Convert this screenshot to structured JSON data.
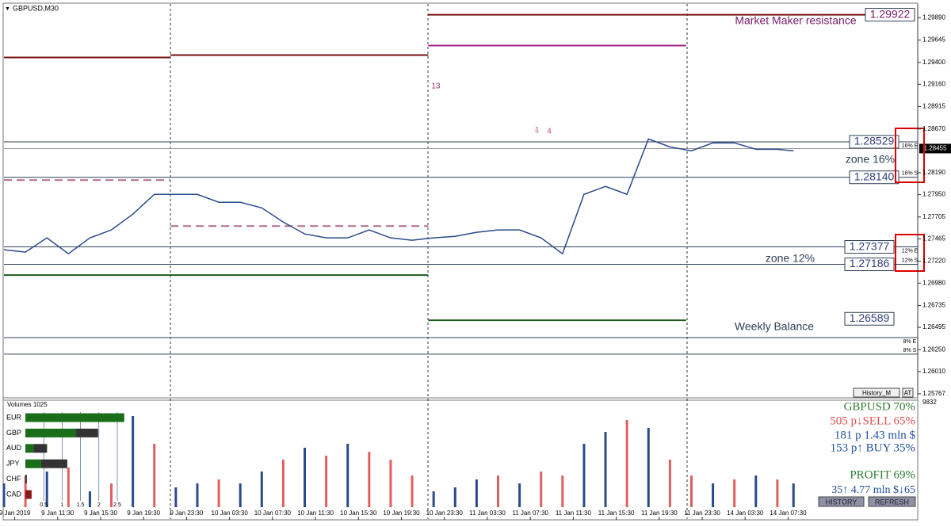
{
  "chart_data": [
    {
      "type": "line",
      "title": "GBPUSD,M30",
      "x": [
        0,
        4,
        8,
        12,
        16,
        20,
        24,
        28,
        32,
        36,
        40,
        44,
        48,
        52,
        56,
        60,
        64,
        68,
        72,
        76,
        80,
        84,
        88,
        92,
        96,
        100,
        104,
        108,
        112,
        116,
        120,
        124,
        128,
        132,
        136,
        140,
        144,
        147
      ],
      "series": [
        {
          "color": "#2b4a8c",
          "values": [
            1.27346,
            1.2732,
            1.27476,
            1.27302,
            1.27476,
            1.27563,
            1.27736,
            1.27953,
            1.27953,
            1.27953,
            1.27866,
            1.27866,
            1.27805,
            1.27649,
            1.27519,
            1.27476,
            1.27476,
            1.27563,
            1.27476,
            1.2745,
            1.27476,
            1.27493,
            1.27537,
            1.27563,
            1.27563,
            1.27476,
            1.27302,
            1.27953,
            1.2804,
            1.27953,
            1.2856,
            1.28473,
            1.2843,
            1.28517,
            1.28517,
            1.28447,
            1.28447,
            1.2843
          ]
        }
      ],
      "xlim": [
        0,
        166
      ],
      "ylim": [
        1.2574,
        1.3004
      ],
      "xticks": [
        {
          "value": 2,
          "label": "9 Jan 2019"
        },
        {
          "value": 10,
          "label": "9 Jan 11:30"
        },
        {
          "value": 18,
          "label": "9 Jan 15:30"
        },
        {
          "value": 26,
          "label": "9 Jan 19:30"
        },
        {
          "value": 34,
          "label": "9 Jan 23:30"
        },
        {
          "value": 42,
          "label": "10 Jan 03:30"
        },
        {
          "value": 50,
          "label": "10 Jan 07:30"
        },
        {
          "value": 58,
          "label": "10 Jan 11:30"
        },
        {
          "value": 66,
          "label": "10 Jan 15:30"
        },
        {
          "value": 74,
          "label": "10 Jan 19:30"
        },
        {
          "value": 82,
          "label": "10 Jan 23:30"
        },
        {
          "value": 90,
          "label": "11 Jan 03:30"
        },
        {
          "value": 98,
          "label": "11 Jan 07:30"
        },
        {
          "value": 106,
          "label": "11 Jan 11:30"
        },
        {
          "value": 114,
          "label": "11 Jan 15:30"
        },
        {
          "value": 122,
          "label": "11 Jan 19:30"
        },
        {
          "value": 130,
          "label": "11 Jan 23:30"
        },
        {
          "value": 138,
          "label": "14 Jan 03:30"
        },
        {
          "value": 146,
          "label": "14 Jan 07:30"
        }
      ],
      "yticks": [
        {
          "value": 1.2989,
          "label": "1.29890"
        },
        {
          "value": 1.29645,
          "label": "1.29645"
        },
        {
          "value": 1.294,
          "label": "1.29400"
        },
        {
          "value": 1.2916,
          "label": "1.29160"
        },
        {
          "value": 1.28915,
          "label": "1.28915"
        },
        {
          "value": 1.2867,
          "label": "1.28670"
        },
        {
          "value": 1.2819,
          "label": "1.28190"
        },
        {
          "value": 1.2795,
          "label": "1.27950"
        },
        {
          "value": 1.27705,
          "label": "1.27705"
        },
        {
          "value": 1.27465,
          "label": "1.27465"
        },
        {
          "value": 1.2722,
          "label": "1.27220"
        },
        {
          "value": 1.2698,
          "label": "1.26980"
        },
        {
          "value": 1.26735,
          "label": "1.26735"
        },
        {
          "value": 1.26495,
          "label": "1.26495"
        },
        {
          "value": 1.2625,
          "label": "1.26250"
        },
        {
          "value": 1.2601,
          "label": "1.26010"
        },
        {
          "value": 1.25767,
          "label": "1.25767"
        }
      ],
      "current_price": {
        "value": 1.28455,
        "label": "1.28455"
      },
      "levels": [
        {
          "value": 1.29922,
          "label": "1.29922"
        },
        {
          "value": 1.28529,
          "label": "1.28529"
        },
        {
          "value": 1.2814,
          "label": "1.28140"
        },
        {
          "value": 1.27377,
          "label": "1.27377"
        },
        {
          "value": 1.27186,
          "label": "1.27186"
        },
        {
          "value": 1.26589,
          "label": "1.26589"
        }
      ],
      "markers": [
        {
          "value": 1.28529,
          "label": "16% E"
        },
        {
          "value": 1.2814,
          "label": "16% S"
        },
        {
          "value": 1.27377,
          "label": "12% E"
        },
        {
          "value": 1.27186,
          "label": "12% S"
        },
        {
          "value": 1.26383,
          "label": "8% E"
        },
        {
          "value": 1.26201,
          "label": "8% S"
        }
      ],
      "segments": [
        {
          "from": 0,
          "to": 31,
          "value": 1.29454,
          "color": "#7a1010",
          "dashed": false
        },
        {
          "from": 31,
          "to": 79,
          "value": 1.2948,
          "color": "#7a1010",
          "dashed": false
        },
        {
          "from": 79,
          "to": 166,
          "value": 1.29922,
          "color": "#7a1010",
          "dashed": false
        },
        {
          "from": 79,
          "to": 127,
          "value": 1.29584,
          "color": "#a0208a",
          "dashed": false
        },
        {
          "from": 0,
          "to": 31,
          "value": 1.28109,
          "color": "#b06a8a",
          "dashed": true
        },
        {
          "from": 31,
          "to": 79,
          "value": 1.27606,
          "color": "#b06a8a",
          "dashed": true
        },
        {
          "from": 0,
          "to": 79,
          "value": 1.27068,
          "color": "#1e5a1e",
          "dashed": false
        },
        {
          "from": 79,
          "to": 127,
          "value": 1.26573,
          "color": "#1e5a1e",
          "dashed": false
        }
      ],
      "annotations": [
        "Market Maker resistance",
        "zone 16%",
        "zone 12%",
        "Weekly Balance",
        "13",
        "4"
      ]
    },
    {
      "type": "bar",
      "title": "Volumes 1025",
      "x": [
        0,
        4,
        8,
        12,
        16,
        20,
        24,
        28,
        32,
        36,
        40,
        44,
        48,
        52,
        56,
        60,
        64,
        68,
        72,
        76,
        80,
        84,
        88,
        92,
        96,
        100,
        104,
        108,
        112,
        116,
        120,
        124,
        128,
        132,
        136,
        140,
        144,
        147
      ],
      "values": [
        2235,
        2980,
        3353,
        3725,
        1490,
        2235,
        8568,
        5960,
        1863,
        2235,
        2608,
        2235,
        3353,
        4470,
        5588,
        4843,
        5960,
        5215,
        4470,
        2980,
        1490,
        1863,
        2608,
        2980,
        2235,
        3353,
        2980,
        5960,
        7078,
        8195,
        7450,
        4470,
        2980,
        2235,
        2608,
        2980,
        2608,
        2235
      ],
      "colors": [
        "#2b4a8c",
        "#e06060",
        "#2b4a8c",
        "#e06060",
        "#2b4a8c",
        "#e06060",
        "#2b4a8c",
        "#e06060",
        "#2b4a8c",
        "#2b4a8c",
        "#e06060",
        "#2b4a8c",
        "#2b4a8c",
        "#e06060",
        "#2b4a8c",
        "#e06060",
        "#2b4a8c",
        "#e06060",
        "#e06060",
        "#e06060",
        "#2b4a8c",
        "#2b4a8c",
        "#2b4a8c",
        "#e06060",
        "#2b4a8c",
        "#e06060",
        "#e06060",
        "#2b4a8c",
        "#2b4a8c",
        "#e06060",
        "#2b4a8c",
        "#e06060",
        "#e06060",
        "#2b4a8c",
        "#e06060",
        "#2b4a8c",
        "#e06060",
        "#2b4a8c"
      ],
      "xlim": [
        0,
        166
      ],
      "ylim": [
        0,
        9832
      ],
      "yticks": [
        9832
      ]
    }
  ],
  "currency_strength": {
    "ticks": [
      0.5,
      1,
      1.5,
      2,
      2.5
    ],
    "rows": [
      {
        "name": "EUR",
        "strong": 2.69,
        "weak": 0
      },
      {
        "name": "GBP",
        "strong": 1.38,
        "weak": 0.6
      },
      {
        "name": "AUD",
        "strong": 0.22,
        "weak": 0.37
      },
      {
        "name": "JPY",
        "strong": 0.43,
        "weak": 0.71
      },
      {
        "name": "CHF",
        "strong": 0,
        "weak": 0.04
      },
      {
        "name": "CAD",
        "strong": 0,
        "weak": 0.17
      }
    ]
  },
  "info_panel": {
    "lines": [
      "GBPUSD 70%",
      "505 p↓SELL 65%",
      "181 p    1.43 mln $",
      "153 p↑ BUY 35%",
      "PROFIT 69%",
      "35↑  4.77 mln $↓65"
    ],
    "buttons": [
      "HISTORY",
      "REFRESH",
      "History_M",
      "AT"
    ]
  }
}
